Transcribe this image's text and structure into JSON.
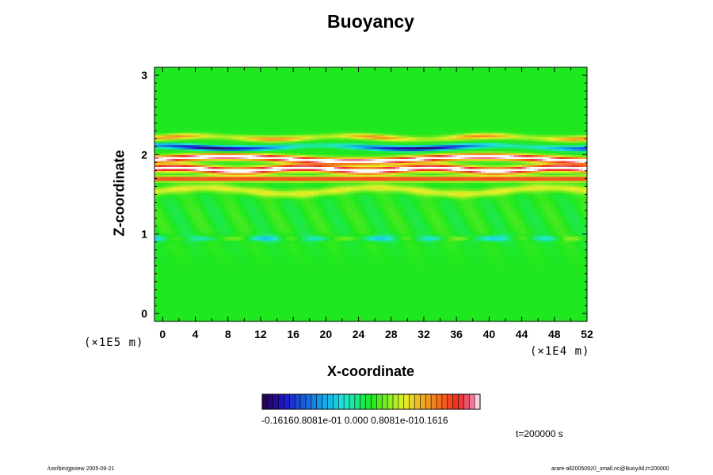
{
  "chart_data": {
    "type": "heatmap",
    "title": "Buoyancy",
    "xlabel": "X-coordinate",
    "ylabel": "Z-coordinate",
    "x_unit_label": "(×1E4 m)",
    "y_unit_label": "(×1E5 m)",
    "xlim": [
      -1,
      52
    ],
    "ylim": [
      -0.1,
      3.1
    ],
    "x_ticks": [
      "0",
      "4",
      "8",
      "12",
      "16",
      "20",
      "24",
      "28",
      "32",
      "36",
      "40",
      "44",
      "48",
      "52"
    ],
    "y_ticks": [
      "0",
      "1",
      "2",
      "3"
    ],
    "colorbar": {
      "min": -0.1616,
      "max": 0.1616,
      "tick_labels_text": "-0.16160.8081e-01 0.000 0.8081e-010.1616",
      "colormap": "rainbow (purple-blue-cyan-green-yellow-red-white)"
    },
    "time_label": "t=200000 s",
    "bands": [
      {
        "z": 2.2,
        "feature": "warm red/yellow band",
        "sign": "positive"
      },
      {
        "z": 2.1,
        "feature": "cold blue band",
        "sign": "negative"
      },
      {
        "z": 1.95,
        "feature": "strong positive band (white, saturated)",
        "sign": "positive"
      },
      {
        "z": 1.8,
        "feature": "strong positive band (white, saturated)",
        "sign": "positive"
      },
      {
        "z": 1.7,
        "feature": "red/orange band",
        "sign": "positive"
      },
      {
        "z": 1.55,
        "feature": "yellow band",
        "sign": "positive"
      },
      {
        "z": 0.95,
        "feature": "weak cyan/yellow perturbations",
        "sign": "mixed"
      }
    ]
  },
  "footer": {
    "left": "/usr/bin/gpview 2005-09-21",
    "right": "arare-all20050920_small.nc@BuoyAll,t=200000"
  },
  "colors": {
    "green": "#1fe61f",
    "yellow": "#f2f22a",
    "red": "#f23020",
    "white": "#ffffff",
    "blue": "#1a40e6",
    "cyan": "#22e8d8"
  }
}
